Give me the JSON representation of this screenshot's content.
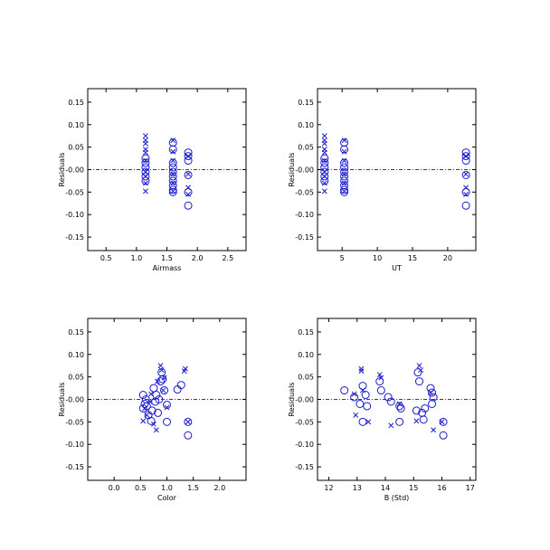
{
  "colors": {
    "markers": "#1a1acc",
    "reference_line": "#cc0000",
    "axes": "#000000"
  },
  "chart_data": [
    {
      "type": "scatter",
      "xlabel": "Airmass",
      "ylabel": "Residuals",
      "xlim": [
        0.2,
        2.8
      ],
      "ylim": [
        -0.18,
        0.18
      ],
      "xticks": [
        0.5,
        1.0,
        1.5,
        2.0,
        2.5
      ],
      "xtick_labels": [
        "0.5",
        "1.0",
        "1.5",
        "2.0",
        "2.5"
      ],
      "yticks": [
        -0.15,
        -0.1,
        -0.05,
        0.0,
        0.05,
        0.1,
        0.15
      ],
      "ytick_labels": [
        "-0.15",
        "-0.10",
        "-0.05",
        "-0.00",
        "0.05",
        "0.10",
        "0.15"
      ],
      "reference_line_y": 0,
      "series": [
        {
          "marker": "cross",
          "points": [
            [
              1.15,
              0.075
            ],
            [
              1.15,
              0.065
            ],
            [
              1.15,
              0.058
            ],
            [
              1.15,
              0.045
            ],
            [
              1.15,
              0.038
            ],
            [
              1.15,
              0.02
            ],
            [
              1.15,
              -0.005
            ],
            [
              1.15,
              -0.015
            ],
            [
              1.15,
              -0.03
            ],
            [
              1.15,
              -0.048
            ],
            [
              1.6,
              0.065
            ],
            [
              1.6,
              0.04
            ],
            [
              1.6,
              0.02
            ],
            [
              1.6,
              -0.01
            ],
            [
              1.6,
              -0.03
            ],
            [
              1.6,
              -0.048
            ],
            [
              1.85,
              0.03
            ],
            [
              1.85,
              -0.01
            ],
            [
              1.85,
              -0.04
            ],
            [
              1.85,
              -0.055
            ]
          ]
        },
        {
          "marker": "circle",
          "points": [
            [
              1.15,
              0.025
            ],
            [
              1.15,
              0.015
            ],
            [
              1.15,
              0.005
            ],
            [
              1.15,
              -0.005
            ],
            [
              1.15,
              -0.015
            ],
            [
              1.15,
              -0.025
            ],
            [
              1.6,
              0.06
            ],
            [
              1.6,
              0.045
            ],
            [
              1.6,
              0.015
            ],
            [
              1.6,
              0.005
            ],
            [
              1.6,
              -0.005
            ],
            [
              1.6,
              -0.015
            ],
            [
              1.6,
              -0.025
            ],
            [
              1.6,
              -0.035
            ],
            [
              1.6,
              -0.045
            ],
            [
              1.6,
              -0.05
            ],
            [
              1.85,
              0.038
            ],
            [
              1.85,
              0.03
            ],
            [
              1.85,
              0.02
            ],
            [
              1.85,
              -0.012
            ],
            [
              1.85,
              -0.05
            ],
            [
              1.85,
              -0.08
            ]
          ]
        }
      ]
    },
    {
      "type": "scatter",
      "xlabel": "UT",
      "ylabel": "Residuals",
      "xlim": [
        1.5,
        24
      ],
      "ylim": [
        -0.18,
        0.18
      ],
      "xticks": [
        5,
        10,
        15,
        20
      ],
      "xtick_labels": [
        "5",
        "10",
        "15",
        "20"
      ],
      "yticks": [
        -0.15,
        -0.1,
        -0.05,
        0.0,
        0.05,
        0.1,
        0.15
      ],
      "ytick_labels": [
        "-0.15",
        "-0.10",
        "-0.05",
        "-0.00",
        "0.05",
        "0.10",
        "0.15"
      ],
      "reference_line_y": 0,
      "series": [
        {
          "marker": "cross",
          "points": [
            [
              2.5,
              0.075
            ],
            [
              2.5,
              0.065
            ],
            [
              2.5,
              0.058
            ],
            [
              2.5,
              0.045
            ],
            [
              2.5,
              0.038
            ],
            [
              2.5,
              0.02
            ],
            [
              2.5,
              -0.005
            ],
            [
              2.5,
              -0.015
            ],
            [
              2.5,
              -0.03
            ],
            [
              2.5,
              -0.048
            ],
            [
              5.3,
              0.065
            ],
            [
              5.3,
              0.04
            ],
            [
              5.3,
              0.02
            ],
            [
              5.3,
              -0.01
            ],
            [
              5.3,
              -0.03
            ],
            [
              5.3,
              -0.048
            ],
            [
              22.6,
              0.03
            ],
            [
              22.6,
              -0.01
            ],
            [
              22.6,
              -0.04
            ],
            [
              22.6,
              -0.055
            ]
          ]
        },
        {
          "marker": "circle",
          "points": [
            [
              2.5,
              0.025
            ],
            [
              2.5,
              0.015
            ],
            [
              2.5,
              0.005
            ],
            [
              2.5,
              -0.005
            ],
            [
              2.5,
              -0.015
            ],
            [
              2.5,
              -0.025
            ],
            [
              5.3,
              0.06
            ],
            [
              5.3,
              0.045
            ],
            [
              5.3,
              0.015
            ],
            [
              5.3,
              0.005
            ],
            [
              5.3,
              -0.005
            ],
            [
              5.3,
              -0.015
            ],
            [
              5.3,
              -0.025
            ],
            [
              5.3,
              -0.035
            ],
            [
              5.3,
              -0.045
            ],
            [
              5.3,
              -0.05
            ],
            [
              22.6,
              0.038
            ],
            [
              22.6,
              0.03
            ],
            [
              22.6,
              0.02
            ],
            [
              22.6,
              -0.012
            ],
            [
              22.6,
              -0.05
            ],
            [
              22.6,
              -0.08
            ]
          ]
        }
      ]
    },
    {
      "type": "scatter",
      "xlabel": "Color",
      "ylabel": "Residuals",
      "xlim": [
        -0.5,
        2.5
      ],
      "ylim": [
        -0.18,
        0.18
      ],
      "xticks": [
        0.0,
        0.5,
        1.0,
        1.5,
        2.0
      ],
      "xtick_labels": [
        "0.0",
        "0.5",
        "1.0",
        "1.5",
        "2.0"
      ],
      "yticks": [
        -0.15,
        -0.1,
        -0.05,
        0.0,
        0.05,
        0.1,
        0.15
      ],
      "ytick_labels": [
        "-0.15",
        "-0.10",
        "-0.05",
        "-0.00",
        "0.05",
        "0.10",
        "0.15"
      ],
      "reference_line_y": 0,
      "series": [
        {
          "marker": "cross",
          "points": [
            [
              0.88,
              0.075
            ],
            [
              0.9,
              0.065
            ],
            [
              1.35,
              0.068
            ],
            [
              1.33,
              0.063
            ],
            [
              0.95,
              0.048
            ],
            [
              0.82,
              0.04
            ],
            [
              0.7,
              0.012
            ],
            [
              0.58,
              -0.02
            ],
            [
              0.62,
              -0.035
            ],
            [
              0.55,
              -0.048
            ],
            [
              0.75,
              -0.055
            ],
            [
              0.8,
              -0.068
            ],
            [
              1.0,
              -0.018
            ],
            [
              1.4,
              -0.05
            ],
            [
              0.93,
              0.02
            ],
            [
              0.68,
              -0.005
            ]
          ]
        },
        {
          "marker": "circle",
          "points": [
            [
              0.9,
              0.06
            ],
            [
              0.92,
              0.045
            ],
            [
              0.88,
              0.04
            ],
            [
              0.75,
              0.025
            ],
            [
              0.8,
              0.01
            ],
            [
              0.55,
              0.01
            ],
            [
              0.6,
              0.0
            ],
            [
              0.58,
              -0.01
            ],
            [
              0.62,
              -0.015
            ],
            [
              0.55,
              -0.02
            ],
            [
              0.72,
              -0.025
            ],
            [
              0.83,
              -0.03
            ],
            [
              0.65,
              -0.035
            ],
            [
              0.7,
              -0.048
            ],
            [
              1.0,
              -0.05
            ],
            [
              1.4,
              -0.05
            ],
            [
              1.4,
              -0.08
            ],
            [
              0.95,
              0.02
            ],
            [
              1.2,
              0.022
            ],
            [
              1.27,
              0.032
            ],
            [
              1.0,
              -0.012
            ],
            [
              0.78,
              -0.005
            ],
            [
              0.85,
              0.0
            ]
          ]
        }
      ]
    },
    {
      "type": "scatter",
      "xlabel": "B (Std)",
      "ylabel": "Residuals",
      "xlim": [
        11.6,
        17.2
      ],
      "ylim": [
        -0.18,
        0.18
      ],
      "xticks": [
        12,
        13,
        14,
        15,
        16,
        17
      ],
      "xtick_labels": [
        "12",
        "13",
        "14",
        "15",
        "16",
        "17"
      ],
      "yticks": [
        -0.15,
        -0.1,
        -0.05,
        0.0,
        0.05,
        0.1,
        0.15
      ],
      "ytick_labels": [
        "-0.15",
        "-0.10",
        "-0.05",
        "-0.00",
        "0.05",
        "0.10",
        "0.15"
      ],
      "reference_line_y": 0,
      "series": [
        {
          "marker": "cross",
          "points": [
            [
              13.15,
              0.068
            ],
            [
              13.15,
              0.063
            ],
            [
              13.8,
              0.055
            ],
            [
              15.2,
              0.075
            ],
            [
              15.25,
              0.065
            ],
            [
              12.9,
              0.012
            ],
            [
              12.95,
              -0.035
            ],
            [
              13.2,
              0.02
            ],
            [
              13.4,
              -0.05
            ],
            [
              14.2,
              -0.058
            ],
            [
              15.1,
              -0.048
            ],
            [
              15.6,
              0.015
            ],
            [
              15.7,
              -0.068
            ],
            [
              16.0,
              -0.05
            ],
            [
              13.85,
              0.048
            ],
            [
              14.5,
              -0.01
            ]
          ]
        },
        {
          "marker": "circle",
          "points": [
            [
              12.55,
              0.02
            ],
            [
              12.9,
              0.005
            ],
            [
              13.1,
              -0.01
            ],
            [
              13.2,
              0.03
            ],
            [
              13.3,
              0.01
            ],
            [
              13.35,
              -0.015
            ],
            [
              13.2,
              -0.05
            ],
            [
              13.8,
              0.04
            ],
            [
              13.85,
              0.02
            ],
            [
              14.1,
              0.005
            ],
            [
              14.2,
              -0.005
            ],
            [
              14.5,
              -0.015
            ],
            [
              14.55,
              -0.02
            ],
            [
              14.5,
              -0.05
            ],
            [
              15.15,
              0.06
            ],
            [
              15.2,
              0.04
            ],
            [
              15.1,
              -0.025
            ],
            [
              15.3,
              -0.03
            ],
            [
              15.4,
              -0.02
            ],
            [
              15.35,
              -0.045
            ],
            [
              15.6,
              0.025
            ],
            [
              15.65,
              0.015
            ],
            [
              15.7,
              0.005
            ],
            [
              15.65,
              -0.01
            ],
            [
              16.05,
              -0.05
            ],
            [
              16.05,
              -0.08
            ]
          ]
        }
      ]
    }
  ]
}
